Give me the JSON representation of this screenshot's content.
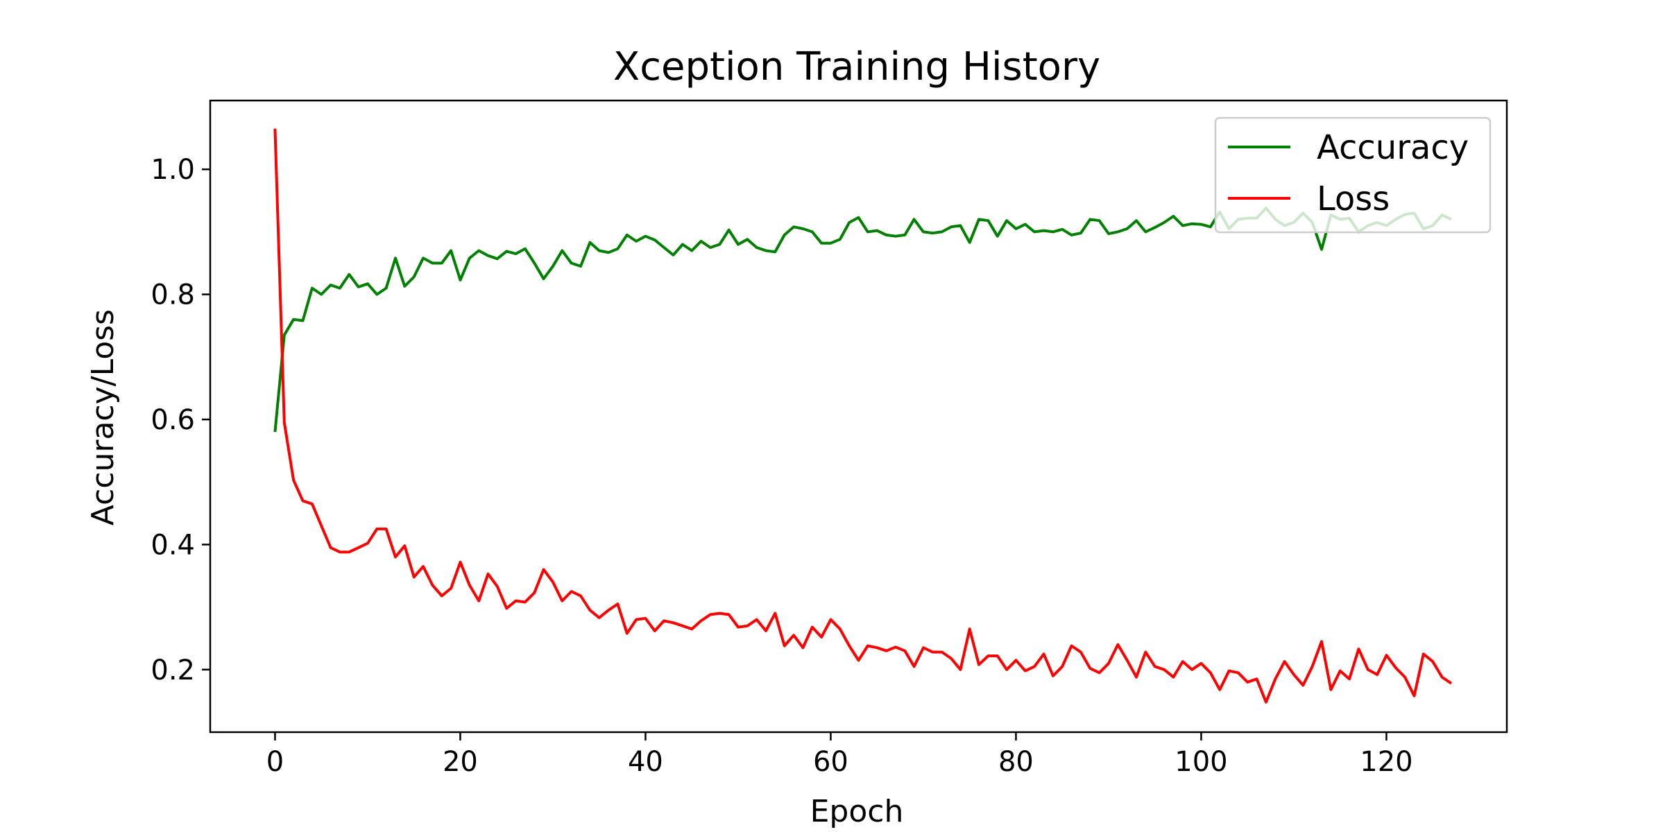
{
  "chart_data": {
    "type": "line",
    "title": "Xception Training History",
    "xlabel": "Epoch",
    "ylabel": "Accuracy/Loss",
    "xlim": [
      -7,
      133
    ],
    "ylim": [
      0.1,
      1.11
    ],
    "xticks": [
      0,
      20,
      40,
      60,
      80,
      100,
      120
    ],
    "yticks": [
      0.2,
      0.4,
      0.6,
      0.8,
      1.0
    ],
    "xtick_labels": [
      "0",
      "20",
      "40",
      "60",
      "80",
      "100",
      "120"
    ],
    "ytick_labels": [
      "0.2",
      "0.4",
      "0.6",
      "0.8",
      "1.0"
    ],
    "grid": false,
    "legend_position": "top-right",
    "x": [
      0,
      1,
      2,
      3,
      4,
      5,
      6,
      7,
      8,
      9,
      10,
      11,
      12,
      13,
      14,
      15,
      16,
      17,
      18,
      19,
      20,
      21,
      22,
      23,
      24,
      25,
      26,
      27,
      28,
      29,
      30,
      31,
      32,
      33,
      34,
      35,
      36,
      37,
      38,
      39,
      40,
      41,
      42,
      43,
      44,
      45,
      46,
      47,
      48,
      49,
      50,
      51,
      52,
      53,
      54,
      55,
      56,
      57,
      58,
      59,
      60,
      61,
      62,
      63,
      64,
      65,
      66,
      67,
      68,
      69,
      70,
      71,
      72,
      73,
      74,
      75,
      76,
      77,
      78,
      79,
      80,
      81,
      82,
      83,
      84,
      85,
      86,
      87,
      88,
      89,
      90,
      91,
      92,
      93,
      94,
      95,
      96,
      97,
      98,
      99,
      100,
      101,
      102,
      103,
      104,
      105,
      106,
      107,
      108,
      109,
      110,
      111,
      112,
      113,
      114,
      115,
      116,
      117,
      118,
      119,
      120,
      121,
      122,
      123,
      124,
      125,
      126,
      127
    ],
    "series": [
      {
        "name": "Accuracy",
        "color": "#008000",
        "values": [
          0.58,
          0.735,
          0.76,
          0.758,
          0.81,
          0.8,
          0.815,
          0.81,
          0.832,
          0.812,
          0.817,
          0.8,
          0.81,
          0.858,
          0.813,
          0.828,
          0.858,
          0.85,
          0.85,
          0.87,
          0.823,
          0.858,
          0.87,
          0.862,
          0.857,
          0.869,
          0.865,
          0.873,
          0.85,
          0.825,
          0.845,
          0.87,
          0.85,
          0.845,
          0.883,
          0.87,
          0.867,
          0.873,
          0.895,
          0.885,
          0.893,
          0.887,
          0.875,
          0.863,
          0.88,
          0.87,
          0.885,
          0.875,
          0.88,
          0.903,
          0.88,
          0.888,
          0.875,
          0.87,
          0.868,
          0.895,
          0.908,
          0.905,
          0.9,
          0.882,
          0.882,
          0.888,
          0.915,
          0.923,
          0.9,
          0.902,
          0.895,
          0.893,
          0.895,
          0.92,
          0.9,
          0.898,
          0.9,
          0.908,
          0.91,
          0.883,
          0.92,
          0.918,
          0.893,
          0.918,
          0.905,
          0.912,
          0.9,
          0.902,
          0.9,
          0.904,
          0.895,
          0.898,
          0.92,
          0.918,
          0.897,
          0.9,
          0.905,
          0.918,
          0.9,
          0.907,
          0.915,
          0.925,
          0.91,
          0.913,
          0.912,
          0.908,
          0.932,
          0.905,
          0.92,
          0.922,
          0.922,
          0.938,
          0.92,
          0.91,
          0.915,
          0.93,
          0.915,
          0.872,
          0.927,
          0.92,
          0.922,
          0.9,
          0.91,
          0.915,
          0.91,
          0.92,
          0.928,
          0.93,
          0.905,
          0.91,
          0.927,
          0.92
        ]
      },
      {
        "name": "Loss",
        "color": "#ff0000",
        "values": [
          1.065,
          0.595,
          0.503,
          0.47,
          0.465,
          0.43,
          0.395,
          0.388,
          0.388,
          0.395,
          0.402,
          0.425,
          0.425,
          0.38,
          0.398,
          0.348,
          0.365,
          0.335,
          0.318,
          0.33,
          0.372,
          0.335,
          0.31,
          0.353,
          0.333,
          0.298,
          0.31,
          0.308,
          0.323,
          0.36,
          0.34,
          0.31,
          0.325,
          0.318,
          0.295,
          0.283,
          0.295,
          0.305,
          0.258,
          0.28,
          0.282,
          0.262,
          0.278,
          0.275,
          0.27,
          0.265,
          0.278,
          0.288,
          0.29,
          0.288,
          0.268,
          0.27,
          0.28,
          0.262,
          0.29,
          0.238,
          0.255,
          0.235,
          0.268,
          0.252,
          0.28,
          0.265,
          0.238,
          0.215,
          0.238,
          0.235,
          0.23,
          0.236,
          0.23,
          0.205,
          0.235,
          0.228,
          0.228,
          0.218,
          0.2,
          0.265,
          0.208,
          0.222,
          0.222,
          0.2,
          0.215,
          0.198,
          0.205,
          0.225,
          0.19,
          0.205,
          0.238,
          0.228,
          0.202,
          0.195,
          0.21,
          0.24,
          0.215,
          0.188,
          0.228,
          0.205,
          0.2,
          0.188,
          0.213,
          0.2,
          0.21,
          0.195,
          0.168,
          0.198,
          0.195,
          0.18,
          0.185,
          0.148,
          0.185,
          0.213,
          0.192,
          0.175,
          0.205,
          0.245,
          0.168,
          0.198,
          0.185,
          0.233,
          0.2,
          0.192,
          0.223,
          0.203,
          0.188,
          0.158,
          0.225,
          0.213,
          0.188,
          0.178
        ]
      }
    ]
  }
}
